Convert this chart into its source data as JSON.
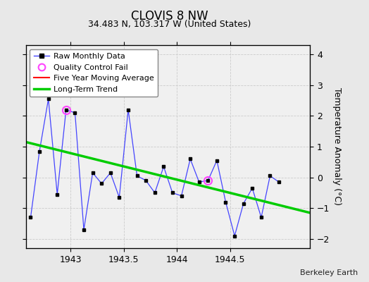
{
  "title": "CLOVIS 8 NW",
  "subtitle": "34.483 N, 103.317 W (United States)",
  "ylabel": "Temperature Anomaly (°C)",
  "credit": "Berkeley Earth",
  "background_color": "#e8e8e8",
  "plot_bg_color": "#f0f0f0",
  "xlim": [
    1942.58,
    1945.25
  ],
  "ylim": [
    -2.3,
    4.3
  ],
  "yticks": [
    -2,
    -1,
    0,
    1,
    2,
    3,
    4
  ],
  "xticks": [
    1943,
    1943.5,
    1944,
    1944.5
  ],
  "raw_x": [
    1942.625,
    1942.708,
    1942.792,
    1942.875,
    1942.958,
    1943.042,
    1943.125,
    1943.208,
    1943.292,
    1943.375,
    1943.458,
    1943.542,
    1943.625,
    1943.708,
    1943.792,
    1943.875,
    1943.958,
    1944.042,
    1944.125,
    1944.208,
    1944.292,
    1944.375,
    1944.458,
    1944.542,
    1944.625,
    1944.708,
    1944.792,
    1944.875,
    1944.958
  ],
  "raw_y": [
    -1.3,
    0.85,
    2.55,
    -0.55,
    2.2,
    2.1,
    -1.7,
    0.15,
    -0.2,
    0.15,
    -0.65,
    2.2,
    0.05,
    -0.1,
    -0.5,
    0.35,
    -0.5,
    -0.6,
    0.6,
    -0.15,
    -0.1,
    0.55,
    -0.8,
    -1.9,
    -0.85,
    -0.35,
    -1.3,
    0.05,
    -0.15
  ],
  "qc_fail_indices": [
    4,
    20
  ],
  "trend_x": [
    1942.58,
    1945.25
  ],
  "trend_y": [
    1.15,
    -1.15
  ],
  "raw_color": "#4444ff",
  "raw_marker_color": "#000000",
  "qc_color": "#ff44ff",
  "trend_color": "#00cc00",
  "ma_color": "#ff0000",
  "grid_color": "#cccccc",
  "legend_fontsize": 8,
  "title_fontsize": 12,
  "subtitle_fontsize": 9,
  "tick_fontsize": 9,
  "ylabel_fontsize": 9
}
